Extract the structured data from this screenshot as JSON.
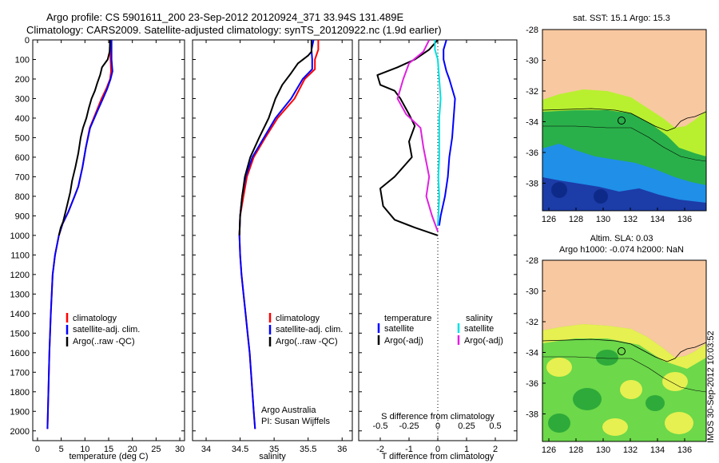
{
  "header": {
    "title_line1": "Argo profile: CS 5901611_200 23-Sep-2012 20120924_371 33.94S 131.489E",
    "title_line2": "Climatology: CARS2009. Satellite-adjusted climatology: synTS_20120922.nc (1.9d earlier)"
  },
  "footer": {
    "timestamp": "IMOS 30-Sep-2012 10:03:52",
    "credit_line1": "Argo Australia",
    "credit_line2": "PI: Susan Wijffels"
  },
  "map_top": {
    "title": "sat. SST: 15.1 Argo: 15.3",
    "xticks": [
      "126",
      "128",
      "130",
      "132",
      "134",
      "136"
    ],
    "yticks": [
      "-28",
      "-30",
      "-32",
      "-34",
      "-36",
      "-38"
    ],
    "colors": {
      "land": "#f8c8a0",
      "warm": "#b8f030",
      "mid": "#2ab04a",
      "cool": "#1f8fe8",
      "cold": "#1c3ca8"
    }
  },
  "map_bottom": {
    "title_line1": "Altim. SLA: 0.03",
    "title_line2": "Argo h1000: -0.074 h2000: NaN",
    "xticks": [
      "126",
      "128",
      "130",
      "132",
      "134",
      "136"
    ],
    "yticks": [
      "-28",
      "-30",
      "-32",
      "-34",
      "-36",
      "-38"
    ],
    "colors": {
      "land": "#f8c8a0",
      "high": "#e6f050",
      "mid": "#6cd84a",
      "low": "#2eaa3a"
    }
  },
  "chart_data": [
    {
      "type": "line",
      "xlabel": "temperature (deg C)",
      "ylabel": "",
      "xlim": [
        -1,
        31
      ],
      "ylim": [
        2050,
        0
      ],
      "xticks": [
        0,
        5,
        10,
        15,
        20,
        25,
        30
      ],
      "yticks": [
        0,
        100,
        200,
        300,
        400,
        500,
        600,
        700,
        800,
        900,
        1000,
        1100,
        1200,
        1300,
        1400,
        1500,
        1600,
        1700,
        1800,
        1900,
        2000
      ],
      "legend": "lower-right",
      "series": [
        {
          "name": "climatology",
          "color": "#ff0000",
          "points": [
            [
              15.3,
              0
            ],
            [
              15.3,
              50
            ],
            [
              15.4,
              100
            ],
            [
              15.5,
              160
            ],
            [
              15.3,
              200
            ],
            [
              14.5,
              250
            ],
            [
              13.5,
              300
            ],
            [
              12.5,
              360
            ],
            [
              11.0,
              450
            ],
            [
              10.2,
              550
            ],
            [
              9.5,
              650
            ],
            [
              8.6,
              750
            ],
            [
              7.8,
              800
            ],
            [
              6.5,
              880
            ],
            [
              5.3,
              940
            ],
            [
              4.5,
              1000
            ],
            [
              3.7,
              1100
            ],
            [
              3.2,
              1200
            ],
            [
              2.8,
              1400
            ],
            [
              2.5,
              1600
            ],
            [
              2.3,
              1800
            ],
            [
              2.1,
              1990
            ]
          ]
        },
        {
          "name": "satellite-adj. clim.",
          "color": "#0000ff",
          "points": [
            [
              15.6,
              0
            ],
            [
              15.6,
              50
            ],
            [
              15.6,
              100
            ],
            [
              15.8,
              160
            ],
            [
              15.4,
              200
            ],
            [
              14.7,
              250
            ],
            [
              13.8,
              300
            ],
            [
              12.7,
              360
            ],
            [
              11.1,
              450
            ],
            [
              10.2,
              550
            ],
            [
              9.5,
              650
            ],
            [
              8.6,
              750
            ],
            [
              7.8,
              800
            ],
            [
              6.5,
              880
            ],
            [
              5.3,
              940
            ],
            [
              4.5,
              1000
            ],
            [
              3.7,
              1100
            ],
            [
              3.2,
              1200
            ],
            [
              2.8,
              1400
            ],
            [
              2.5,
              1600
            ],
            [
              2.3,
              1800
            ],
            [
              2.1,
              1990
            ]
          ]
        },
        {
          "name": "Argo(..raw -QC)",
          "color": "#000000",
          "points": [
            [
              15.3,
              0
            ],
            [
              15.2,
              60
            ],
            [
              14.8,
              100
            ],
            [
              13.6,
              140
            ],
            [
              13.2,
              180
            ],
            [
              12.6,
              220
            ],
            [
              12.1,
              260
            ],
            [
              11.4,
              300
            ],
            [
              10.8,
              350
            ],
            [
              10.3,
              400
            ],
            [
              9.6,
              450
            ],
            [
              9.1,
              500
            ],
            [
              8.6,
              580
            ],
            [
              8.0,
              650
            ],
            [
              7.3,
              720
            ],
            [
              6.9,
              780
            ],
            [
              6.1,
              860
            ],
            [
              5.4,
              930
            ],
            [
              4.9,
              960
            ],
            [
              4.5,
              1000
            ]
          ]
        }
      ]
    },
    {
      "type": "line",
      "xlabel": "salinity",
      "ylabel": "",
      "xlim": [
        33.8,
        36.15
      ],
      "ylim": [
        2050,
        0
      ],
      "xticks": [
        34,
        34.5,
        35,
        35.5,
        36
      ],
      "legend": "lower-right",
      "series": [
        {
          "name": "climatology",
          "color": "#ff0000",
          "points": [
            [
              35.65,
              0
            ],
            [
              35.65,
              50
            ],
            [
              35.6,
              100
            ],
            [
              35.6,
              150
            ],
            [
              35.45,
              200
            ],
            [
              35.3,
              300
            ],
            [
              35.05,
              400
            ],
            [
              34.87,
              500
            ],
            [
              34.7,
              600
            ],
            [
              34.6,
              700
            ],
            [
              34.55,
              800
            ],
            [
              34.5,
              900
            ],
            [
              34.49,
              1000
            ],
            [
              34.5,
              1100
            ],
            [
              34.52,
              1200
            ],
            [
              34.55,
              1300
            ],
            [
              34.58,
              1400
            ],
            [
              34.61,
              1500
            ],
            [
              34.64,
              1600
            ],
            [
              34.66,
              1700
            ],
            [
              34.68,
              1800
            ],
            [
              34.7,
              1900
            ],
            [
              34.72,
              1990
            ]
          ]
        },
        {
          "name": "satellite-adj. clim.",
          "color": "#0000ff",
          "points": [
            [
              35.58,
              0
            ],
            [
              35.55,
              50
            ],
            [
              35.56,
              100
            ],
            [
              35.56,
              150
            ],
            [
              35.42,
              200
            ],
            [
              35.25,
              300
            ],
            [
              35.02,
              400
            ],
            [
              34.85,
              500
            ],
            [
              34.68,
              600
            ],
            [
              34.58,
              700
            ],
            [
              34.53,
              800
            ],
            [
              34.5,
              900
            ],
            [
              34.49,
              1000
            ],
            [
              34.5,
              1100
            ],
            [
              34.52,
              1200
            ],
            [
              34.55,
              1300
            ],
            [
              34.58,
              1400
            ],
            [
              34.61,
              1500
            ],
            [
              34.64,
              1600
            ],
            [
              34.66,
              1700
            ],
            [
              34.68,
              1800
            ],
            [
              34.7,
              1900
            ],
            [
              34.72,
              1990
            ]
          ]
        },
        {
          "name": "Argo(..raw -QC)",
          "color": "#000000",
          "points": [
            [
              35.55,
              0
            ],
            [
              35.55,
              60
            ],
            [
              35.5,
              80
            ],
            [
              35.35,
              120
            ],
            [
              35.25,
              170
            ],
            [
              35.12,
              230
            ],
            [
              35.02,
              300
            ],
            [
              34.92,
              400
            ],
            [
              34.78,
              500
            ],
            [
              34.65,
              600
            ],
            [
              34.57,
              700
            ],
            [
              34.53,
              800
            ],
            [
              34.5,
              900
            ],
            [
              34.49,
              1000
            ]
          ]
        }
      ]
    },
    {
      "type": "line",
      "xlabel": "T difference from climatology",
      "xlabel_top": "S difference from climatology",
      "ylabel": "",
      "xlim": [
        -2.75,
        2.75
      ],
      "ylim": [
        2050,
        0
      ],
      "xticks": [
        -2,
        -1,
        0,
        1,
        2
      ],
      "xtick_labels_s": [
        "-0.5",
        "-0.25",
        "0",
        "0.25",
        "0.5"
      ],
      "legend": "top",
      "series": [
        {
          "name": "temperature satellite",
          "color": "#0000ff",
          "points": [
            [
              0.3,
              0
            ],
            [
              0.2,
              50
            ],
            [
              0.2,
              100
            ],
            [
              0.3,
              160
            ],
            [
              0.4,
              200
            ],
            [
              0.6,
              300
            ],
            [
              0.55,
              400
            ],
            [
              0.5,
              500
            ],
            [
              0.4,
              600
            ],
            [
              0.35,
              700
            ],
            [
              0.25,
              800
            ],
            [
              0.1,
              900
            ],
            [
              0.05,
              950
            ]
          ]
        },
        {
          "name": "temperature Argo(-adj)",
          "color": "#000000",
          "points": [
            [
              0,
              0
            ],
            [
              -0.3,
              50
            ],
            [
              -0.8,
              100
            ],
            [
              -1.4,
              140
            ],
            [
              -2.1,
              180
            ],
            [
              -2.0,
              230
            ],
            [
              -1.5,
              260
            ],
            [
              -1.3,
              300
            ],
            [
              -1.0,
              380
            ],
            [
              -0.8,
              440
            ],
            [
              -1.0,
              520
            ],
            [
              -0.9,
              600
            ],
            [
              -1.5,
              700
            ],
            [
              -2.0,
              760
            ],
            [
              -1.9,
              850
            ],
            [
              -1.5,
              920
            ],
            [
              -0.8,
              960
            ],
            [
              0,
              1000
            ]
          ]
        },
        {
          "name": "salinity satellite",
          "color": "#00e0e0",
          "points": [
            [
              -0.1,
              0
            ],
            [
              -0.1,
              50
            ],
            [
              0,
              100
            ],
            [
              0.05,
              200
            ],
            [
              0.1,
              300
            ],
            [
              0.05,
              400
            ],
            [
              0.05,
              500
            ],
            [
              0.05,
              600
            ],
            [
              0.02,
              700
            ],
            [
              0.05,
              800
            ],
            [
              0.02,
              900
            ],
            [
              0,
              950
            ]
          ]
        },
        {
          "name": "salinity Argo(-adj)",
          "color": "#e020e0",
          "points": [
            [
              -0.3,
              0
            ],
            [
              -0.5,
              60
            ],
            [
              -1.0,
              120
            ],
            [
              -1.1,
              160
            ],
            [
              -1.2,
              200
            ],
            [
              -1.4,
              300
            ],
            [
              -1.1,
              380
            ],
            [
              -0.6,
              450
            ],
            [
              -0.5,
              550
            ],
            [
              -0.3,
              700
            ],
            [
              -0.4,
              800
            ],
            [
              -0.2,
              900
            ],
            [
              0,
              980
            ]
          ]
        }
      ]
    }
  ],
  "legends": {
    "temp_panel": [
      {
        "label": "climatology",
        "color": "#ff0000"
      },
      {
        "label": "satellite-adj. clim.",
        "color": "#0000ff"
      },
      {
        "label": "Argo(..raw -QC)",
        "color": "#000000"
      }
    ],
    "sal_panel": [
      {
        "label": "climatology",
        "color": "#ff0000"
      },
      {
        "label": "satellite-adj. clim.",
        "color": "#0000ff"
      },
      {
        "label": "Argo(..raw -QC)",
        "color": "#000000"
      }
    ],
    "diff_panel": {
      "temperature_header": "temperature",
      "salinity_header": "salinity",
      "temperature": [
        {
          "label": "satellite",
          "color": "#0000ff"
        },
        {
          "label": "Argo(-adj)",
          "color": "#000000"
        }
      ],
      "salinity": [
        {
          "label": "satellite",
          "color": "#00e0e0"
        },
        {
          "label": "Argo(-adj)",
          "color": "#e020e0"
        }
      ]
    }
  }
}
